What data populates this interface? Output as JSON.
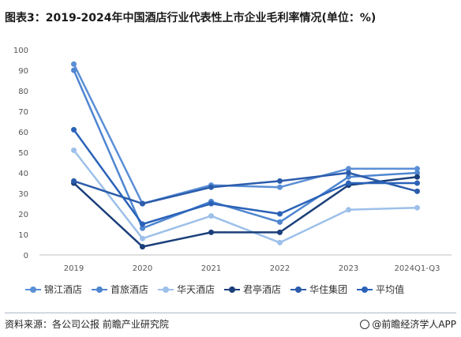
{
  "title": "图表3：2019-2024年中国酒店行业代表性上市企业毛利率情况(单位：%)",
  "source": "资料来源：各公司公报 前瞻产业研究院",
  "brand": "@前瞻经济学人APP",
  "brand_icon": "qianzhan-logo-icon",
  "chart_data": {
    "type": "line",
    "categories": [
      "2019",
      "2020",
      "2021",
      "2022",
      "2023",
      "2024Q1-Q3"
    ],
    "ylim": [
      0,
      100
    ],
    "yticks": [
      0,
      10,
      20,
      30,
      40,
      50,
      60,
      70,
      80,
      90,
      100
    ],
    "grid": false,
    "legend_position": "bottom",
    "series": [
      {
        "name": "锦江酒店",
        "color": "#5b8fd6",
        "values": [
          93,
          25,
          34,
          33,
          42,
          42
        ]
      },
      {
        "name": "首旅酒店",
        "color": "#4f86d0",
        "values": [
          90,
          13,
          26,
          16,
          38,
          40
        ]
      },
      {
        "name": "华天酒店",
        "color": "#9dc0ea",
        "values": [
          51,
          8,
          19,
          6,
          22,
          23
        ]
      },
      {
        "name": "君亭酒店",
        "color": "#1b3f7a",
        "values": [
          35,
          4,
          11,
          11,
          34,
          38
        ]
      },
      {
        "name": "华住集团",
        "color": "#2b5cab",
        "values": [
          36,
          25,
          33,
          36,
          40,
          31
        ]
      },
      {
        "name": "平均值",
        "color": "#2a62b8",
        "values": [
          61,
          15,
          25,
          20,
          35,
          35
        ]
      }
    ]
  }
}
